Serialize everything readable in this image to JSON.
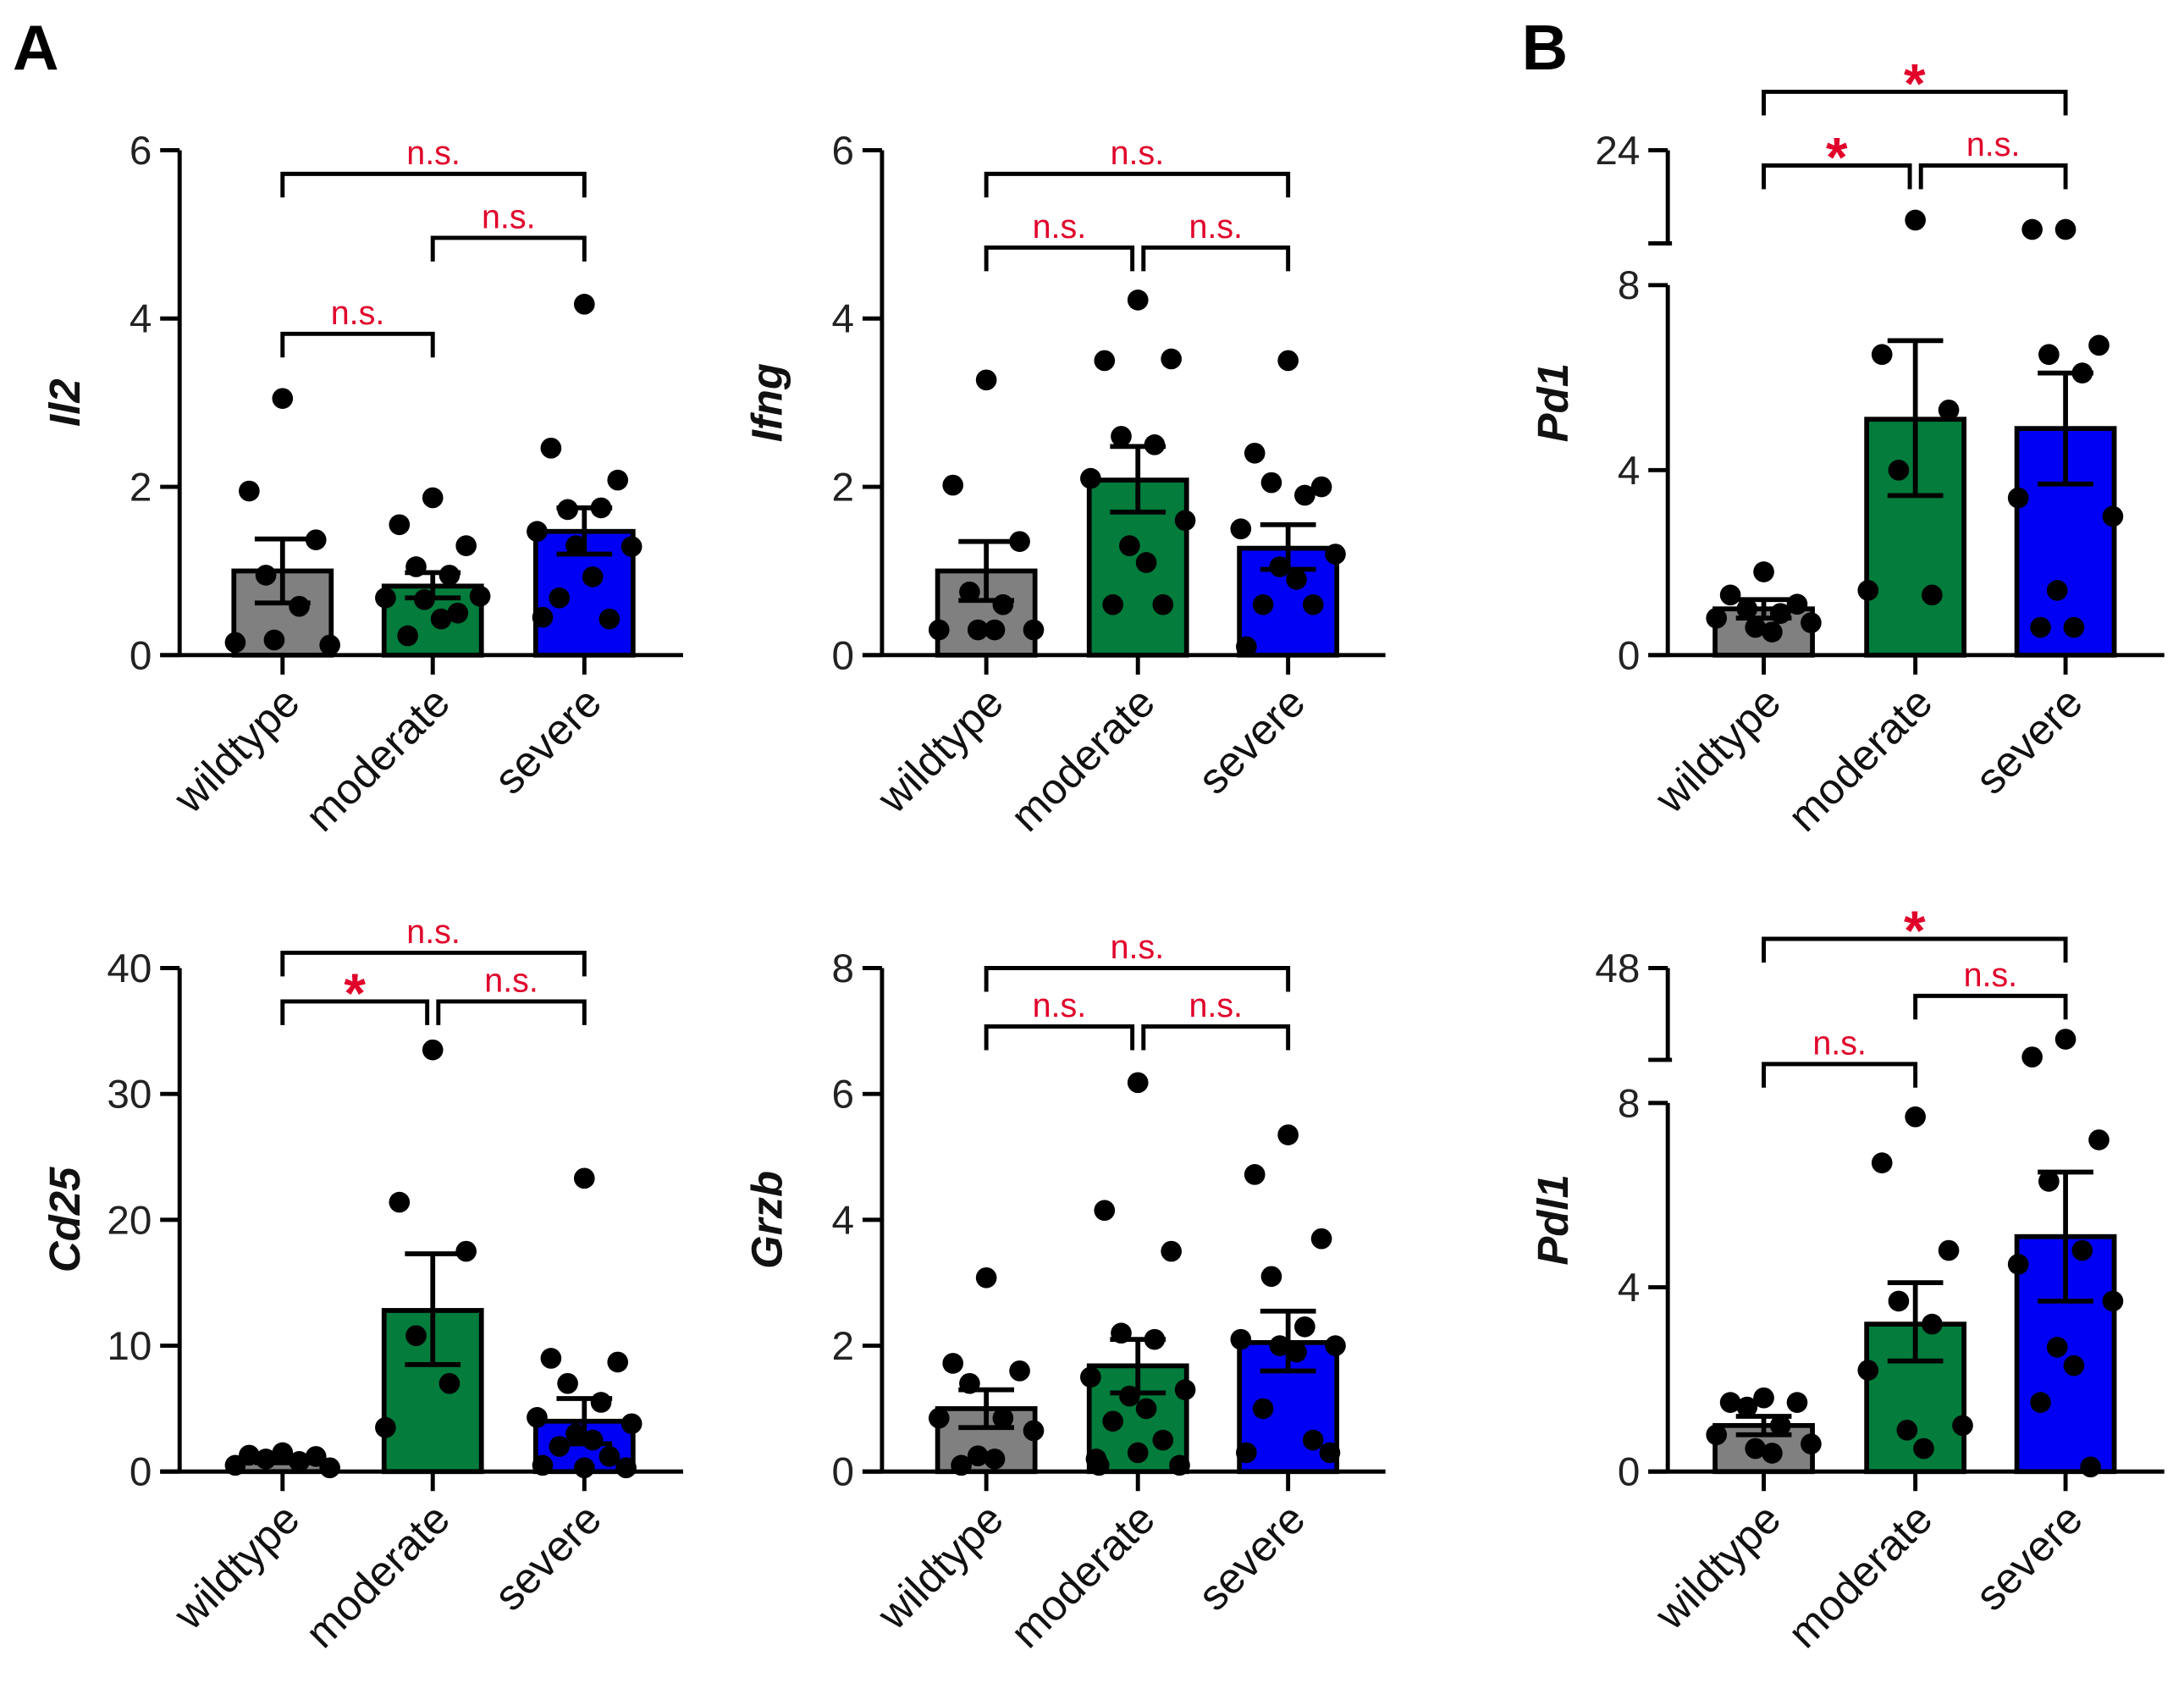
{
  "panel_labels": [
    "A",
    "B"
  ],
  "colors": {
    "wildtype": "#808080",
    "moderate": "#037c3c",
    "severe": "#0000f5",
    "significance": "#e0002a"
  },
  "chart_data": [
    {
      "type": "bar",
      "id": "il2",
      "ylabel": "Il2",
      "categories": [
        "wildtype",
        "moderate",
        "severe"
      ],
      "ylim": [
        0,
        6
      ],
      "yticks": [
        "0",
        "2",
        "4",
        "6"
      ],
      "yticks_values": [
        0,
        2,
        4,
        6
      ],
      "means": [
        1.0,
        0.82,
        1.47
      ],
      "sem_low": [
        0.62,
        0.68,
        1.2
      ],
      "sem_high": [
        1.38,
        0.98,
        1.75
      ],
      "points": [
        [
          3.05,
          1.95,
          1.37,
          0.95,
          0.58,
          0.15,
          0.12,
          0.18
        ],
        [
          1.87,
          1.55,
          1.3,
          1.05,
          0.95,
          0.68,
          0.7,
          0.66,
          0.43,
          0.23,
          0.5
        ],
        [
          4.17,
          2.46,
          2.08,
          1.73,
          1.75,
          1.47,
          1.29,
          1.3,
          0.93,
          0.68,
          0.43,
          0.45
        ]
      ],
      "comparisons": [
        {
          "from": 0,
          "to": 1,
          "label": "n.s.",
          "level": 0
        },
        {
          "from": 1,
          "to": 2,
          "label": "n.s.",
          "level": 1
        },
        {
          "from": 0,
          "to": 2,
          "label": "n.s.",
          "level": 2
        }
      ]
    },
    {
      "type": "bar",
      "id": "ifng",
      "ylabel": "Ifng",
      "categories": [
        "wildtype",
        "moderate",
        "severe"
      ],
      "ylim": [
        0,
        6
      ],
      "yticks": [
        "0",
        "2",
        "4",
        "6"
      ],
      "yticks_values": [
        0,
        2,
        4,
        6
      ],
      "means": [
        1.0,
        2.08,
        1.27
      ],
      "sem_low": [
        0.65,
        1.7,
        1.02
      ],
      "sem_high": [
        1.35,
        2.48,
        1.55
      ],
      "points": [
        [
          3.27,
          2.02,
          1.35,
          0.75,
          0.6,
          0.3,
          0.3,
          0.3,
          0.3
        ],
        [
          4.22,
          3.5,
          3.52,
          2.6,
          2.5,
          2.1,
          1.6,
          1.3,
          1.1,
          0.6,
          0.6
        ],
        [
          3.5,
          2.4,
          2.0,
          2.05,
          1.9,
          1.5,
          1.2,
          1.05,
          0.9,
          0.6,
          0.6,
          0.1
        ]
      ],
      "comparisons": [
        {
          "from": 0,
          "to": 1,
          "label": "n.s.",
          "level": 0
        },
        {
          "from": 1,
          "to": 2,
          "label": "n.s.",
          "level": 0
        },
        {
          "from": 0,
          "to": 2,
          "label": "n.s.",
          "level": 1
        }
      ]
    },
    {
      "type": "bar",
      "id": "pd1",
      "ylabel": "Pd1",
      "categories": [
        "wildtype",
        "moderate",
        "severe"
      ],
      "ylim": [
        0,
        24
      ],
      "axis_break": [
        8,
        16
      ],
      "yticks": [
        "0",
        "4",
        "8",
        "24"
      ],
      "yticks_values": [
        0,
        4,
        8,
        24
      ],
      "means": [
        1.0,
        5.1,
        4.9
      ],
      "sem_low": [
        0.8,
        3.45,
        3.7
      ],
      "sem_high": [
        1.2,
        6.8,
        6.1
      ],
      "points": [
        [
          1.8,
          1.3,
          1.1,
          1.0,
          0.9,
          0.8,
          0.7,
          0.6,
          0.5
        ],
        [
          18.0,
          6.5,
          5.3,
          4.0,
          1.3,
          1.4
        ],
        [
          17.2,
          17.2,
          6.7,
          6.5,
          6.1,
          3.4,
          3.0,
          1.4,
          0.6,
          0.6
        ]
      ],
      "comparisons": [
        {
          "from": 0,
          "to": 1,
          "label": "*",
          "level": 0
        },
        {
          "from": 1,
          "to": 2,
          "label": "n.s.",
          "level": 0
        },
        {
          "from": 0,
          "to": 2,
          "label": "*",
          "level": 1
        }
      ]
    },
    {
      "type": "bar",
      "id": "cd25",
      "ylabel": "Cd25",
      "categories": [
        "wildtype",
        "moderate",
        "severe"
      ],
      "ylim": [
        0,
        40
      ],
      "yticks": [
        "0",
        "10",
        "20",
        "30",
        "40"
      ],
      "yticks_values": [
        0,
        10,
        20,
        30,
        40
      ],
      "means": [
        0.9,
        12.8,
        4.0
      ],
      "sem_low": [
        0.7,
        8.5,
        2.2
      ],
      "sem_high": [
        1.1,
        17.3,
        5.8
      ],
      "points": [
        [
          1.5,
          1.3,
          1.2,
          1.0,
          0.8,
          0.5,
          0.3
        ],
        [
          33.5,
          21.4,
          17.5,
          10.8,
          7.0,
          3.5
        ],
        [
          23.3,
          9.0,
          8.7,
          7.0,
          5.5,
          4.3,
          3.8,
          3.0,
          2.5,
          2.0,
          1.2,
          0.5,
          0.3,
          0.3
        ]
      ],
      "comparisons": [
        {
          "from": 0,
          "to": 1,
          "label": "*",
          "level": 0
        },
        {
          "from": 1,
          "to": 2,
          "label": "n.s.",
          "level": 0
        },
        {
          "from": 0,
          "to": 2,
          "label": "n.s.",
          "level": 1
        }
      ]
    },
    {
      "type": "bar",
      "id": "grzb",
      "ylabel": "Grzb",
      "categories": [
        "wildtype",
        "moderate",
        "severe"
      ],
      "ylim": [
        0,
        8
      ],
      "yticks": [
        "0",
        "2",
        "4",
        "6",
        "8"
      ],
      "yticks_values": [
        0,
        2,
        4,
        6,
        8
      ],
      "means": [
        1.0,
        1.68,
        2.05
      ],
      "sem_low": [
        0.7,
        1.25,
        1.6
      ],
      "sem_high": [
        1.3,
        2.1,
        2.55
      ],
      "points": [
        [
          3.08,
          1.72,
          1.6,
          1.4,
          0.85,
          0.85,
          0.65,
          0.25,
          0.2,
          0.1
        ],
        [
          6.18,
          4.15,
          3.5,
          2.2,
          2.1,
          1.5,
          1.3,
          1.2,
          1.0,
          0.8,
          0.5,
          0.2,
          0.1,
          0.3,
          0.1
        ],
        [
          5.35,
          4.72,
          3.7,
          3.1,
          2.3,
          2.1,
          2.0,
          2.0,
          1.9,
          1.0,
          0.5,
          0.3,
          0.3
        ]
      ],
      "comparisons": [
        {
          "from": 0,
          "to": 1,
          "label": "n.s.",
          "level": 0
        },
        {
          "from": 1,
          "to": 2,
          "label": "n.s.",
          "level": 0
        },
        {
          "from": 0,
          "to": 2,
          "label": "n.s.",
          "level": 1
        }
      ]
    },
    {
      "type": "bar",
      "id": "pdl1",
      "ylabel": "Pdl1",
      "categories": [
        "wildtype",
        "moderate",
        "severe"
      ],
      "ylim": [
        0,
        48
      ],
      "axis_break": [
        8,
        32
      ],
      "yticks": [
        "0",
        "4",
        "8",
        "48"
      ],
      "yticks_values": [
        0,
        4,
        8,
        48
      ],
      "means": [
        1.0,
        3.2,
        5.1
      ],
      "sem_low": [
        0.8,
        2.4,
        3.7
      ],
      "sem_high": [
        1.2,
        4.1,
        6.5
      ],
      "points": [
        [
          1.6,
          1.5,
          1.5,
          1.4,
          1.0,
          0.8,
          0.6,
          0.5,
          0.4
        ],
        [
          7.7,
          6.7,
          4.8,
          3.7,
          3.2,
          2.2,
          1.0,
          0.9,
          0.5
        ],
        [
          35.6,
          32.5,
          7.2,
          6.3,
          4.8,
          4.5,
          3.7,
          2.7,
          2.3,
          1.5,
          0.1
        ]
      ],
      "comparisons": [
        {
          "from": 0,
          "to": 1,
          "label": "n.s.",
          "level": 0
        },
        {
          "from": 1,
          "to": 2,
          "label": "n.s.",
          "level": 1
        },
        {
          "from": 0,
          "to": 2,
          "label": "*",
          "level": 2
        }
      ]
    }
  ]
}
